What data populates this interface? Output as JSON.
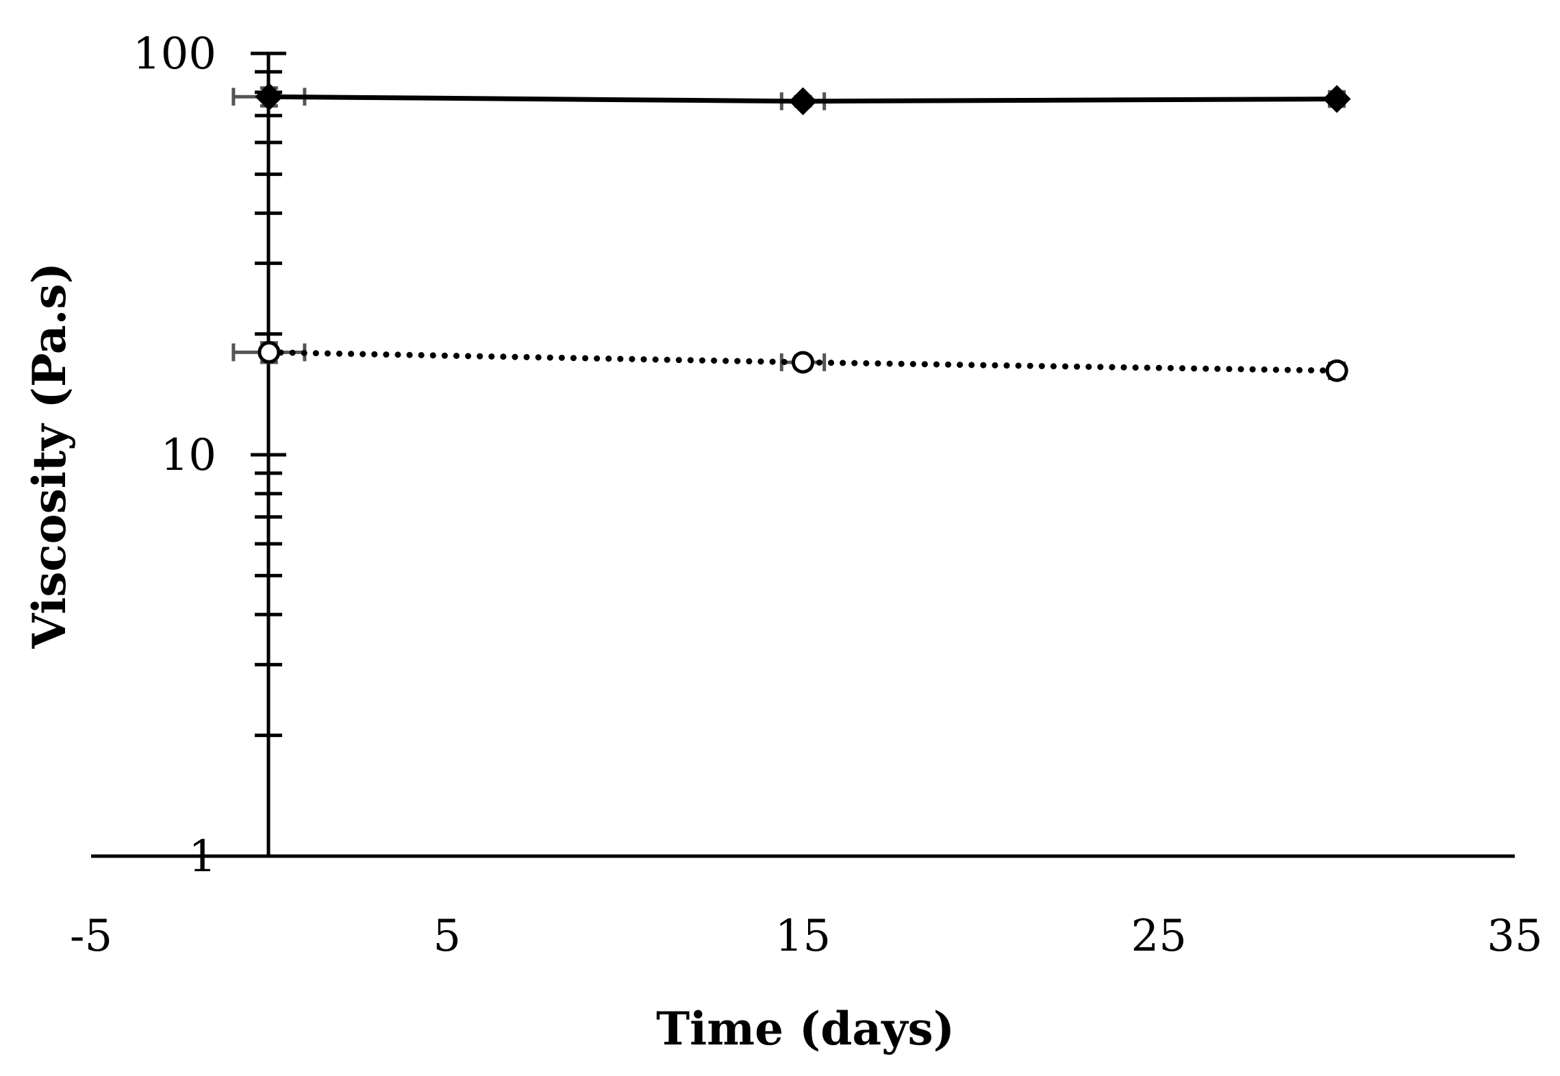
{
  "chart_data": {
    "type": "line",
    "title": "",
    "xlabel": "Time (days)",
    "ylabel": "Viscosity (Pa.s)",
    "xlim": [
      -5,
      35
    ],
    "ylim": [
      1,
      100
    ],
    "y_scale": "log",
    "x_ticks": [
      "-5",
      "5",
      "15",
      "25",
      "35"
    ],
    "y_ticks": [
      "1",
      "10",
      "100"
    ],
    "grid": false,
    "legend": "none",
    "series": [
      {
        "marker": "diamond-filled",
        "line_style": "solid",
        "color": "#000000",
        "x": [
          0,
          15,
          30
        ],
        "y": [
          78,
          76,
          77
        ],
        "x_err": [
          1,
          0.6,
          0.2
        ],
        "y_err": [
          4,
          2,
          3
        ]
      },
      {
        "marker": "circle-open",
        "line_style": "dotted",
        "color": "#000000",
        "x": [
          0,
          15,
          30
        ],
        "y": [
          18,
          17,
          16.2
        ],
        "x_err": [
          1,
          0.6,
          0.2
        ],
        "y_err": [
          1,
          0.6,
          0.7
        ]
      }
    ],
    "error_bar_color": "#555555"
  }
}
